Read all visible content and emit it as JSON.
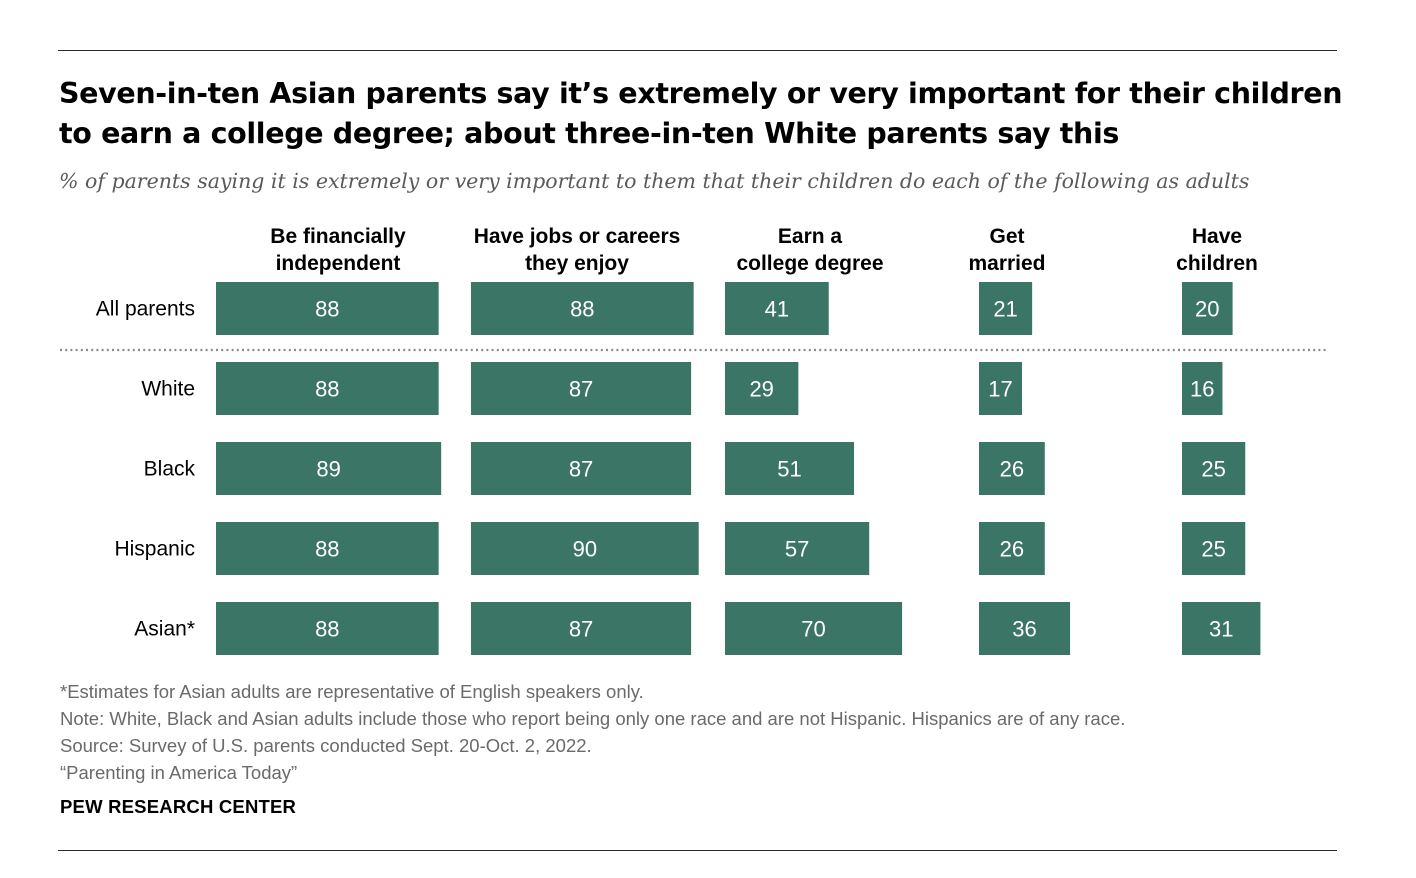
{
  "title": "Seven-in-ten Asian parents say it’s extremely or very important for their children to earn a college degree; about three-in-ten White parents say this",
  "subtitle": "% of parents saying it is extremely or very important to them that their children do each of the following as adults",
  "colors": {
    "bar": "#3a7566",
    "bar_text": "#ffffff",
    "separator": "#8a8a8a"
  },
  "chart_data": {
    "type": "bar",
    "orientation": "horizontal",
    "layout": "small-multiples",
    "categories": [
      "All parents",
      "White",
      "Black",
      "Hispanic",
      "Asian*"
    ],
    "series": [
      {
        "name": "Be financially independent",
        "header_lines": [
          "Be financially",
          "independent"
        ],
        "values": [
          88,
          88,
          89,
          88,
          88
        ]
      },
      {
        "name": "Have jobs or careers they enjoy",
        "header_lines": [
          "Have jobs or careers",
          "they enjoy"
        ],
        "values": [
          88,
          87,
          87,
          90,
          87
        ]
      },
      {
        "name": "Earn a college degree",
        "header_lines": [
          "Earn a",
          "college degree"
        ],
        "values": [
          41,
          29,
          51,
          57,
          70
        ]
      },
      {
        "name": "Get married",
        "header_lines": [
          "Get",
          "married"
        ],
        "values": [
          21,
          17,
          26,
          26,
          36
        ]
      },
      {
        "name": "Have children",
        "header_lines": [
          "Have",
          "children"
        ],
        "values": [
          20,
          16,
          25,
          25,
          31
        ]
      }
    ],
    "xlim": [
      0,
      100
    ],
    "grid": false,
    "legend": "none",
    "data_labels": "inside bars"
  },
  "notes": {
    "asterisk": "*Estimates for Asian adults are representative of English speakers only.",
    "note": "Note: White, Black and Asian adults include those who report being only one race and are not Hispanic. Hispanics are of any race.",
    "source": "Source: Survey of U.S. parents conducted Sept. 20-Oct. 2, 2022.",
    "report": "“Parenting in America Today”"
  },
  "brand": "PEW RESEARCH CENTER"
}
